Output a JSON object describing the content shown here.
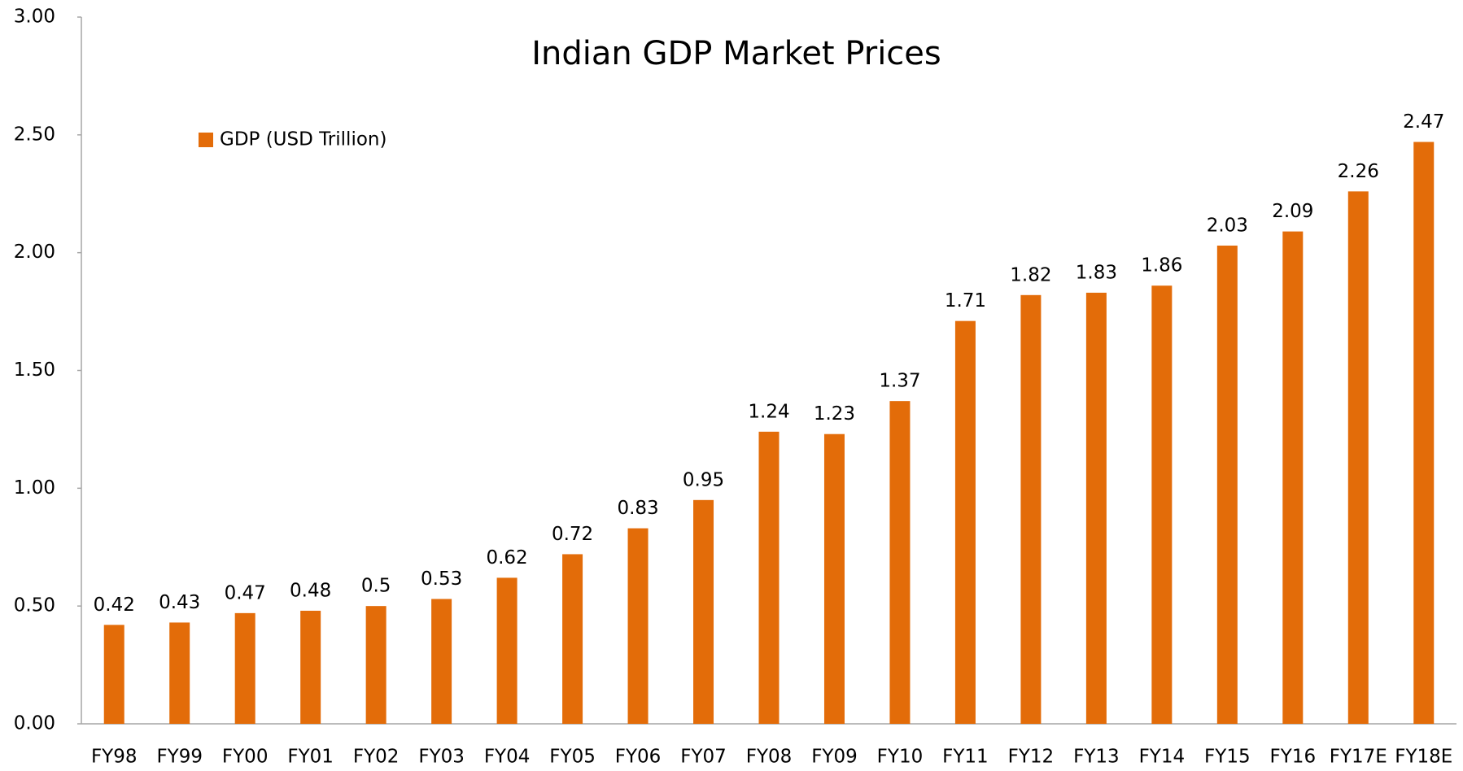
{
  "chart_data": {
    "type": "bar",
    "title": "Indian GDP Market Prices",
    "categories": [
      "FY98",
      "FY99",
      "FY00",
      "FY01",
      "FY02",
      "FY03",
      "FY04",
      "FY05",
      "FY06",
      "FY07",
      "FY08",
      "FY09",
      "FY10",
      "FY11",
      "FY12",
      "FY13",
      "FY14",
      "FY15",
      "FY16",
      "FY17E",
      "FY18E"
    ],
    "series": [
      {
        "name": "GDP (USD Trillion)",
        "color": "#e36c09",
        "values": [
          0.42,
          0.43,
          0.47,
          0.48,
          0.5,
          0.53,
          0.62,
          0.72,
          0.83,
          0.95,
          1.24,
          1.23,
          1.37,
          1.71,
          1.82,
          1.83,
          1.86,
          2.03,
          2.09,
          2.26,
          2.47
        ]
      }
    ],
    "ylim": [
      0,
      3
    ],
    "yticks": [
      {
        "value": 0,
        "label": "0.00"
      },
      {
        "value": 0.5,
        "label": "0.50"
      },
      {
        "value": 1,
        "label": "1.00"
      },
      {
        "value": 1.5,
        "label": "1.50"
      },
      {
        "value": 2,
        "label": "2.00"
      },
      {
        "value": 2.5,
        "label": "2.50"
      },
      {
        "value": 3,
        "label": "3.00"
      }
    ],
    "grid": false,
    "legend": "top-left"
  }
}
